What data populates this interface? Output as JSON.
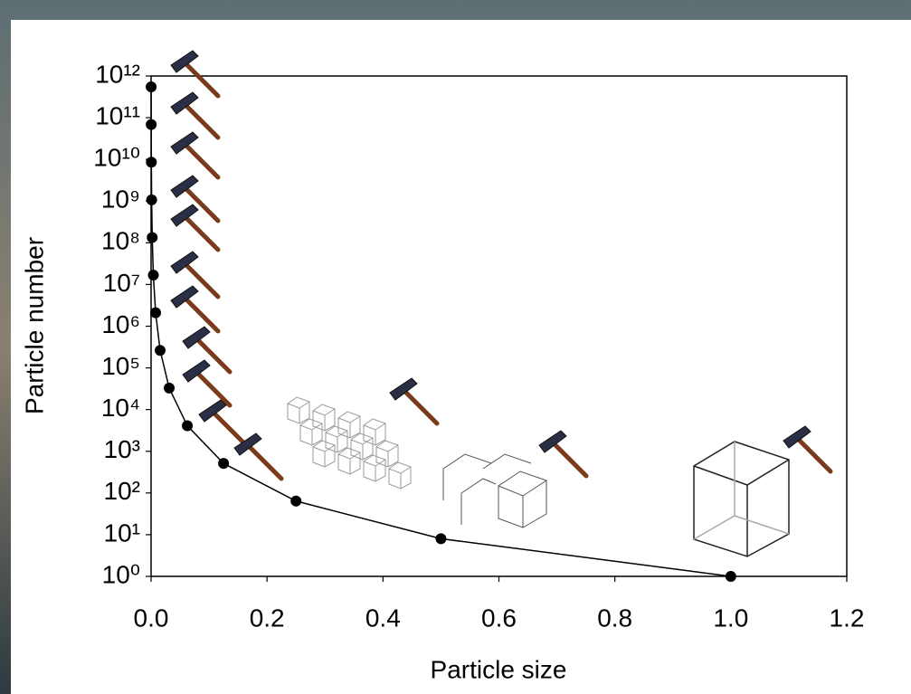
{
  "chart_data": {
    "type": "line",
    "xlabel": "Particle size",
    "ylabel": "Particle number",
    "x": [
      1,
      0.5,
      0.25,
      0.125,
      0.0625,
      0.03125,
      0.015625,
      0.0078125,
      0.00390625,
      0.001953125,
      0.0009765625,
      0.00048828125,
      0.000244140625,
      0.0001220703125
    ],
    "series": [
      {
        "color": "#000000",
        "values": [
          1,
          8,
          64,
          512,
          4096,
          32768,
          262144,
          2097152,
          16777216,
          134217728,
          1073741824,
          8589934592,
          68719476736,
          549755813888
        ]
      }
    ],
    "xlim": [
      0,
      1.2
    ],
    "xticks": [
      {
        "value": 0,
        "label": "0.0"
      },
      0.2,
      0.4,
      0.6,
      0.8,
      {
        "value": 1,
        "label": "1.0"
      },
      1.2
    ],
    "ylim": [
      1,
      1000000000000
    ],
    "ylog": true,
    "yticks": [
      {
        "value": 1,
        "label": "10⁰"
      },
      {
        "value": 10,
        "label": "10¹"
      },
      {
        "value": 100,
        "label": "10²"
      },
      {
        "value": 1000,
        "label": "10³"
      },
      {
        "value": 10000,
        "label": "10⁴"
      },
      {
        "value": 100000,
        "label": "10⁵"
      },
      {
        "value": 1000000,
        "label": "10⁶"
      },
      {
        "value": 10000000,
        "label": "10⁷"
      },
      {
        "value": 100000000,
        "label": "10⁸"
      },
      {
        "value": 1000000000,
        "label": "10⁹"
      },
      {
        "value": 10000000000,
        "label": "10¹⁰"
      },
      {
        "value": 100000000000,
        "label": "10¹¹"
      },
      {
        "value": 1000000000000,
        "label": "10¹²"
      }
    ]
  }
}
